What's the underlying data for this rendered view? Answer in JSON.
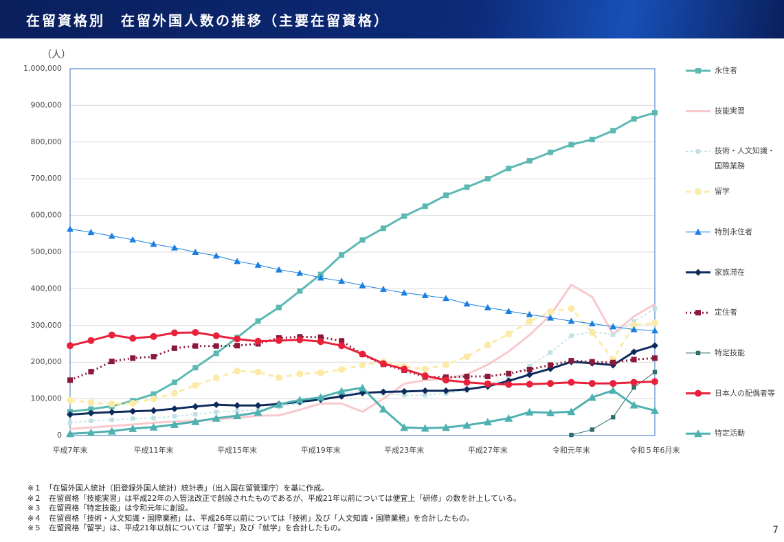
{
  "header": {
    "title": "在留資格別　在留外国人数の推移（主要在留資格）"
  },
  "chart_data": {
    "type": "line",
    "y_label": "（人）",
    "categories": [
      "平成7年末",
      null,
      null,
      null,
      "平成11年末",
      null,
      null,
      null,
      "平成15年末",
      null,
      null,
      null,
      "平成19年末",
      null,
      null,
      null,
      "平成23年末",
      null,
      null,
      null,
      "平成27年末",
      null,
      null,
      null,
      "令和元年末",
      null,
      null,
      null,
      "令和５年6月末"
    ],
    "ylim": [
      0,
      1000000
    ],
    "yticks": [
      0,
      {
        "value": 100000,
        "label": "100,000"
      },
      {
        "value": 200000,
        "label": "200,000"
      },
      {
        "value": 300000,
        "label": "300,000"
      },
      {
        "value": 400000,
        "label": "400,000"
      },
      {
        "value": 500000,
        "label": "500,000"
      },
      {
        "value": 600000,
        "label": "600,000"
      },
      {
        "value": 700000,
        "label": "700,000"
      },
      {
        "value": 800000,
        "label": "800,000"
      },
      {
        "value": 900000,
        "label": "900,000"
      },
      {
        "value": 1000000,
        "label": "1,000,000"
      }
    ],
    "grid": true,
    "legend": "right",
    "series": [
      {
        "name": "永住者",
        "color": "#5cb8b2",
        "marker": "square",
        "dash": "solid",
        "width": 3,
        "values": [
          65000,
          72000,
          80000,
          95000,
          113000,
          145000,
          185000,
          224000,
          267000,
          312000,
          349000,
          394000,
          439000,
          492000,
          533000,
          565000,
          598000,
          625000,
          655000,
          677000,
          700000,
          728000,
          749000,
          772000,
          793000,
          807000,
          831000,
          863000,
          880000
        ]
      },
      {
        "name": "技能実習",
        "color": "#f8c8cc",
        "marker": "none",
        "dash": "solid",
        "width": 3,
        "values": [
          18000,
          22000,
          26000,
          30000,
          35000,
          38000,
          40000,
          45000,
          48000,
          54000,
          55000,
          70000,
          87000,
          87000,
          65000,
          100000,
          141000,
          151000,
          155000,
          167000,
          193000,
          229000,
          274000,
          328000,
          411000,
          378000,
          276000,
          325000,
          358000
        ]
      },
      {
        "name": "技術・人文知識・国際業務",
        "color": "#bfe0e4",
        "marker": "square",
        "dash": "dashed",
        "width": 1.5,
        "values": [
          35000,
          40000,
          43000,
          46000,
          48000,
          52000,
          58000,
          64000,
          67000,
          70000,
          78000,
          88000,
          104000,
          118000,
          118000,
          115000,
          110000,
          110000,
          115000,
          123000,
          138000,
          161000,
          189000,
          226000,
          272000,
          283000,
          275000,
          311000,
          346000
        ]
      },
      {
        "name": "留学",
        "color": "#fbeaa8",
        "marker": "circle",
        "dash": "dashed",
        "width": 3,
        "values": [
          96000,
          90000,
          86000,
          88000,
          100000,
          115000,
          137000,
          157000,
          176000,
          173000,
          158000,
          168000,
          171000,
          180000,
          192000,
          201000,
          188000,
          181000,
          193000,
          215000,
          247000,
          277000,
          311000,
          337000,
          346000,
          281000,
          208000,
          301000,
          307000
        ]
      },
      {
        "name": "特別永住者",
        "color": "#1a7fe0",
        "marker": "triangle",
        "dash": "solid",
        "width": 1,
        "values": [
          563000,
          554000,
          544000,
          534000,
          522000,
          512000,
          500000,
          490000,
          475000,
          465000,
          452000,
          443000,
          430000,
          421000,
          409000,
          399000,
          389000,
          382000,
          374000,
          359000,
          349000,
          339000,
          330000,
          321000,
          312000,
          305000,
          297000,
          289000,
          286000
        ]
      },
      {
        "name": "家族滞在",
        "color": "#0d2a5c",
        "marker": "diamond",
        "dash": "solid",
        "width": 3,
        "values": [
          57000,
          61000,
          64000,
          66000,
          68000,
          73000,
          79000,
          84000,
          82000,
          82000,
          86000,
          92000,
          98000,
          107000,
          116000,
          119000,
          120000,
          122000,
          122000,
          126000,
          134000,
          149000,
          166000,
          182000,
          201000,
          197000,
          192000,
          228000,
          245000
        ]
      },
      {
        "name": "定住者",
        "color": "#8b1a3a",
        "marker": "square",
        "dash": "dotted",
        "width": 3,
        "values": [
          151000,
          174000,
          202000,
          211000,
          215000,
          238000,
          244000,
          244000,
          245000,
          250000,
          266000,
          269000,
          268000,
          258000,
          221000,
          194000,
          178000,
          160000,
          159000,
          161000,
          161000,
          169000,
          180000,
          192000,
          204000,
          201000,
          199000,
          207000,
          211000
        ]
      },
      {
        "name": "特定技能",
        "color": "#2f6e70",
        "marker": "square",
        "dash": "solid",
        "width": 1,
        "values": [
          null,
          null,
          null,
          null,
          null,
          null,
          null,
          null,
          null,
          null,
          null,
          null,
          null,
          null,
          null,
          null,
          null,
          null,
          null,
          null,
          null,
          null,
          null,
          null,
          1600,
          16000,
          50000,
          131000,
          173000
        ]
      },
      {
        "name": "日本人の配偶者等",
        "color": "#e8203a",
        "marker": "circle",
        "dash": "solid",
        "width": 3,
        "values": [
          245000,
          259000,
          274000,
          265000,
          270000,
          280000,
          281000,
          272000,
          263000,
          257000,
          259000,
          261000,
          256000,
          245000,
          222000,
          196000,
          181000,
          163000,
          151000,
          145000,
          141000,
          139000,
          140000,
          142000,
          145000,
          142000,
          142000,
          145000,
          147000
        ]
      },
      {
        "name": "特定活動",
        "color": "#4fb0b0",
        "marker": "triangle",
        "dash": "solid",
        "width": 3,
        "values": [
          5000,
          8000,
          12000,
          19000,
          23000,
          30000,
          38000,
          47000,
          54000,
          63000,
          85000,
          97000,
          104000,
          121000,
          130000,
          72000,
          22000,
          20000,
          22000,
          28000,
          37000,
          47000,
          64000,
          62000,
          65000,
          104000,
          123000,
          83000,
          68000
        ]
      }
    ]
  },
  "footnotes": [
    "※１　「在留外国人統計（旧登録外国人統計）統計表」（出入国在留管理庁）を基に作成。",
    "※２　在留資格「技能実習」は平成22年の入管法改正で創設されたものであるが、平成21年以前については便宜上「研修」の数を計上している。",
    "※３　在留資格「特定技能」は令和元年に創設。",
    "※４　在留資格「技術・人文知識・国際業務」は、平成26年以前については「技術」及び「人文知識・国際業務」を合計したもの。",
    "※５　在留資格「留学」は、平成21年以前については「留学」及び「就学」を合計したもの。"
  ],
  "page_number": "7"
}
